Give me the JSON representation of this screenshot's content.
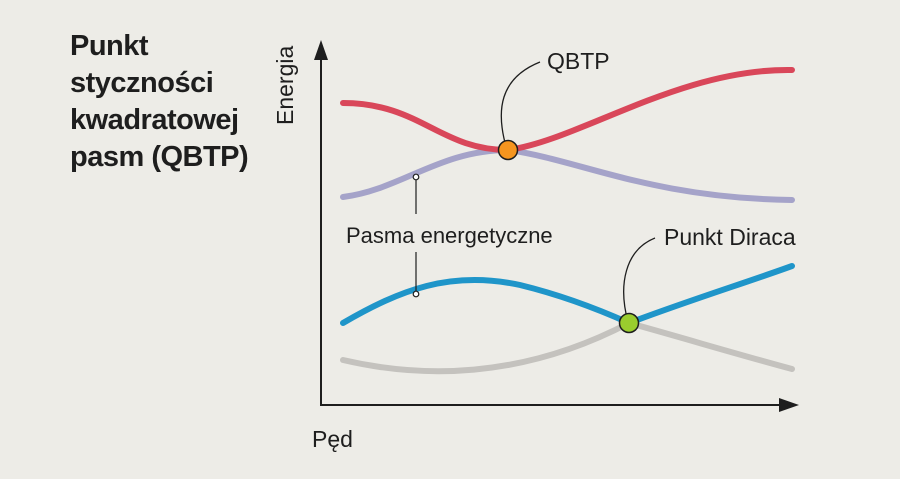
{
  "title_lines": [
    "Punkt",
    "styczności",
    "kwadratowej",
    "pasm (QBTP)"
  ],
  "axes": {
    "y_label": "Energia",
    "x_label": "Pęd"
  },
  "annotations": {
    "qbtp": "QBTP",
    "bands": "Pasma energetyczne",
    "dirac": "Punkt Diraca"
  },
  "colors": {
    "background": "#edece7",
    "upper_band_red": "#d9475a",
    "upper_band_lavender": "#a5a3c9",
    "lower_band_blue": "#1f95c9",
    "lower_band_gray": "#c4c2be",
    "qbtp_point": "#f5951f",
    "dirac_point": "#9acd2e",
    "axis": "#1e1e1e"
  }
}
